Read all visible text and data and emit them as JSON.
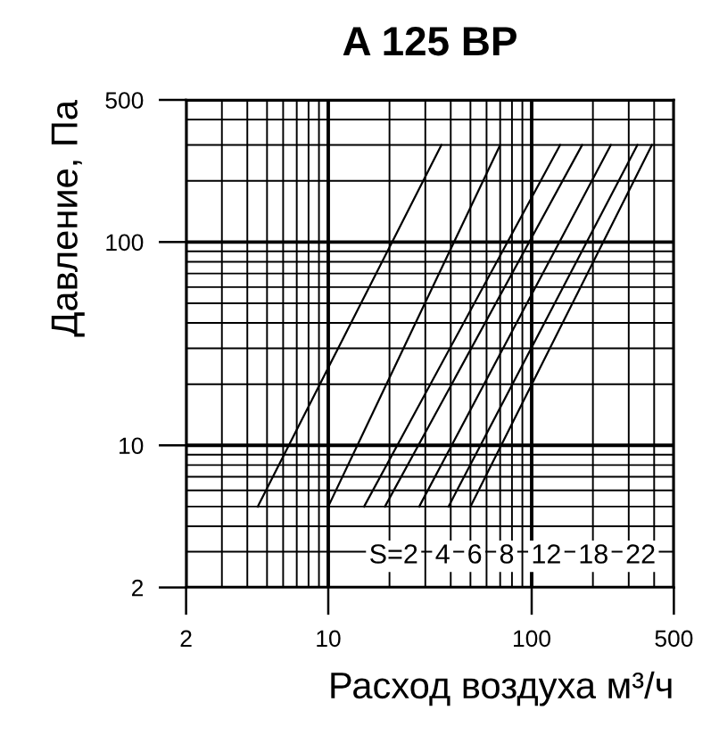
{
  "chart_data": {
    "type": "line",
    "title": "A 125 BP",
    "xlabel": "Расход воздуха м³/ч",
    "ylabel": "Давление, Па",
    "log": "xy",
    "xlim": [
      2,
      500
    ],
    "ylim": [
      2,
      500
    ],
    "xticks": [
      2,
      10,
      100,
      500
    ],
    "yticks": [
      2,
      10,
      100,
      500
    ],
    "grid": true,
    "line_style": "solid",
    "annotations": [
      "S=2",
      "4",
      "6",
      "8",
      "12",
      "18",
      "22"
    ],
    "series": [
      {
        "color": "#000000",
        "x": [
          4.5,
          36
        ],
        "values": [
          5,
          300
        ]
      },
      {
        "color": "#000000",
        "x": [
          10,
          70
        ],
        "values": [
          5,
          300
        ]
      },
      {
        "color": "#000000",
        "x": [
          15,
          138
        ],
        "values": [
          5,
          300
        ]
      },
      {
        "color": "#000000",
        "x": [
          19,
          177
        ],
        "values": [
          5,
          300
        ]
      },
      {
        "color": "#000000",
        "x": [
          28,
          245
        ],
        "values": [
          5,
          300
        ]
      },
      {
        "color": "#000000",
        "x": [
          39,
          331
        ],
        "values": [
          5,
          300
        ]
      },
      {
        "color": "#000000",
        "x": [
          50,
          390
        ],
        "values": [
          5,
          300
        ]
      }
    ]
  }
}
